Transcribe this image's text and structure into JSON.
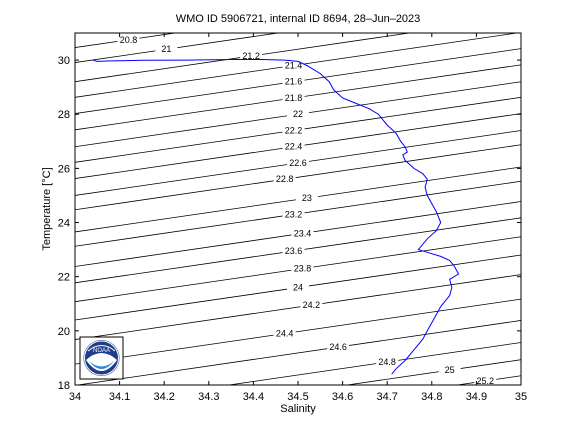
{
  "chart_data": {
    "type": "line",
    "title": "WMO ID 5906721, internal ID 8694, 28–Jun–2023",
    "xlabel": "Salinity",
    "ylabel": "Temperature [°C]",
    "xlim": [
      34,
      35
    ],
    "ylim": [
      18,
      31
    ],
    "xticks": [
      "34",
      "34.1",
      "34.2",
      "34.3",
      "34.4",
      "34.5",
      "34.6",
      "34.7",
      "34.8",
      "34.9",
      "35"
    ],
    "yticks": [
      "18",
      "20",
      "22",
      "24",
      "26",
      "28",
      "30"
    ],
    "grid": false,
    "line_color": "#0000ff",
    "logo": "noaa-logo",
    "isopycnals": [
      {
        "label": "20.8",
        "s": 34.12,
        "t": 30.75
      },
      {
        "label": "21",
        "s": 34.205,
        "t": 30.4
      },
      {
        "label": "21.2",
        "s": 34.395,
        "t": 30.15
      },
      {
        "label": "21.4",
        "s": 34.49,
        "t": 29.8
      },
      {
        "label": "21.6",
        "s": 34.49,
        "t": 29.2
      },
      {
        "label": "21.8",
        "s": 34.49,
        "t": 28.6
      },
      {
        "label": "22",
        "s": 34.5,
        "t": 28.0
      },
      {
        "label": "22.2",
        "s": 34.49,
        "t": 27.4
      },
      {
        "label": "22.4",
        "s": 34.49,
        "t": 26.8
      },
      {
        "label": "22.6",
        "s": 34.5,
        "t": 26.2
      },
      {
        "label": "22.8",
        "s": 34.47,
        "t": 25.6
      },
      {
        "label": "23",
        "s": 34.52,
        "t": 24.9
      },
      {
        "label": "23.2",
        "s": 34.49,
        "t": 24.3
      },
      {
        "label": "23.4",
        "s": 34.51,
        "t": 23.6
      },
      {
        "label": "23.6",
        "s": 34.49,
        "t": 22.95
      },
      {
        "label": "23.8",
        "s": 34.51,
        "t": 22.3
      },
      {
        "label": "24",
        "s": 34.5,
        "t": 21.6
      },
      {
        "label": "24.2",
        "s": 34.53,
        "t": 20.95
      },
      {
        "label": "24.4",
        "s": 34.47,
        "t": 19.9
      },
      {
        "label": "24.6",
        "s": 34.59,
        "t": 19.4
      },
      {
        "label": "24.8",
        "s": 34.7,
        "t": 18.85
      },
      {
        "label": "25",
        "s": 34.84,
        "t": 18.55
      },
      {
        "label": "25.2",
        "s": 34.92,
        "t": 18.15
      }
    ],
    "series": [
      {
        "points": [
          [
            34.04,
            30.0
          ],
          [
            34.05,
            29.95
          ],
          [
            34.08,
            29.97
          ],
          [
            34.15,
            29.99
          ],
          [
            34.25,
            30.0
          ],
          [
            34.35,
            30.02
          ],
          [
            34.42,
            30.02
          ],
          [
            34.47,
            30.0
          ],
          [
            34.5,
            29.95
          ],
          [
            34.52,
            29.8
          ],
          [
            34.55,
            29.5
          ],
          [
            34.57,
            29.2
          ],
          [
            34.58,
            28.9
          ],
          [
            34.6,
            28.6
          ],
          [
            34.63,
            28.4
          ],
          [
            34.66,
            28.2
          ],
          [
            34.68,
            28.0
          ],
          [
            34.7,
            27.6
          ],
          [
            34.72,
            27.3
          ],
          [
            34.73,
            27.0
          ],
          [
            34.74,
            26.8
          ],
          [
            34.745,
            26.6
          ],
          [
            34.735,
            26.5
          ],
          [
            34.74,
            26.3
          ],
          [
            34.76,
            26.0
          ],
          [
            34.78,
            25.8
          ],
          [
            34.79,
            25.6
          ],
          [
            34.785,
            25.3
          ],
          [
            34.79,
            25.0
          ],
          [
            34.8,
            24.7
          ],
          [
            34.81,
            24.4
          ],
          [
            34.82,
            24.0
          ],
          [
            34.81,
            23.7
          ],
          [
            34.79,
            23.4
          ],
          [
            34.77,
            23.0
          ],
          [
            34.79,
            22.9
          ],
          [
            34.82,
            22.75
          ],
          [
            34.84,
            22.6
          ],
          [
            34.85,
            22.4
          ],
          [
            34.86,
            22.1
          ],
          [
            34.84,
            21.9
          ],
          [
            34.845,
            21.6
          ],
          [
            34.84,
            21.3
          ],
          [
            34.83,
            21.1
          ],
          [
            34.82,
            20.9
          ],
          [
            34.81,
            20.6
          ],
          [
            34.8,
            20.3
          ],
          [
            34.79,
            20.0
          ],
          [
            34.78,
            19.7
          ],
          [
            34.76,
            19.3
          ],
          [
            34.74,
            18.9
          ],
          [
            34.72,
            18.6
          ],
          [
            34.71,
            18.4
          ]
        ]
      }
    ]
  }
}
